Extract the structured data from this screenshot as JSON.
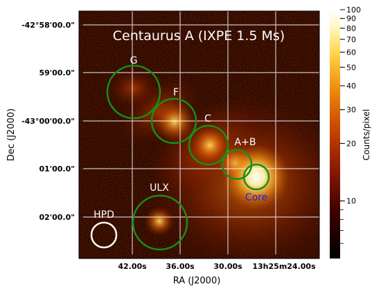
{
  "chart_data": {
    "type": "heatmap",
    "title": "Centaurus A (IXPE 1.5 Ms)",
    "xlabel": "RA (J2000)",
    "ylabel": "Dec (J2000)",
    "x_ticks": [
      "42.00s",
      "36.00s",
      "30.00s",
      "13h25m24.00s"
    ],
    "y_ticks": [
      "-42°58'00.0\"",
      "59'00.0\"",
      "-43°00'00.0\"",
      "01'00.0\"",
      "02'00.0\""
    ],
    "colorbar": {
      "label": "Counts/pixel",
      "scale": "log",
      "range": [
        5,
        100
      ],
      "ticks": [
        "100",
        "90",
        "80",
        "70",
        "60",
        "50",
        "40",
        "30",
        "20",
        "10"
      ],
      "colormap": [
        "#000000",
        "#3a0000",
        "#8b1a00",
        "#c84400",
        "#ee8c0e",
        "#ffd24a",
        "#fff8c0",
        "#ffffff"
      ]
    },
    "regions": [
      {
        "label": "G",
        "color": "#169016",
        "label_color": "#ffffff"
      },
      {
        "label": "F",
        "color": "#169016",
        "label_color": "#ffffff"
      },
      {
        "label": "C",
        "color": "#169016",
        "label_color": "#ffffff"
      },
      {
        "label": "A+B",
        "color": "#169016",
        "label_color": "#ffffff"
      },
      {
        "label": "Core",
        "color": "#169016",
        "label_color": "#1a1aff"
      },
      {
        "label": "ULX",
        "color": "#169016",
        "label_color": "#ffffff"
      },
      {
        "label": "HPD",
        "color": "#ffffff",
        "label_color": "#ffffff"
      }
    ],
    "grid": true
  }
}
